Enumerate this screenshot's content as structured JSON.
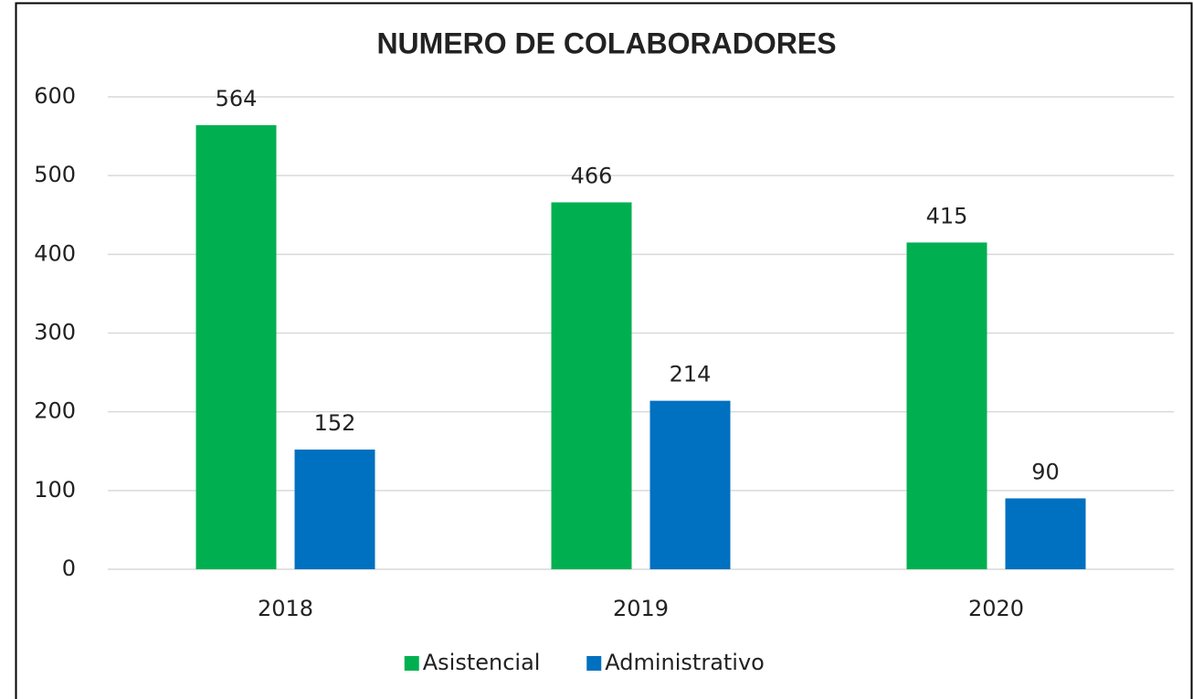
{
  "chart_data": {
    "type": "bar",
    "title": "NUMERO DE COLABORADORES",
    "categories": [
      "2018",
      "2019",
      "2020"
    ],
    "series": [
      {
        "name": "Asistencial",
        "color": "#00b050",
        "values": [
          564,
          466,
          415
        ]
      },
      {
        "name": "Administrativo",
        "color": "#0070c0",
        "values": [
          152,
          214,
          90
        ]
      }
    ],
    "ylim": [
      0,
      600
    ],
    "yticks": [
      0,
      100,
      200,
      300,
      400,
      500,
      600
    ],
    "grid": true,
    "legend": "bottom"
  }
}
